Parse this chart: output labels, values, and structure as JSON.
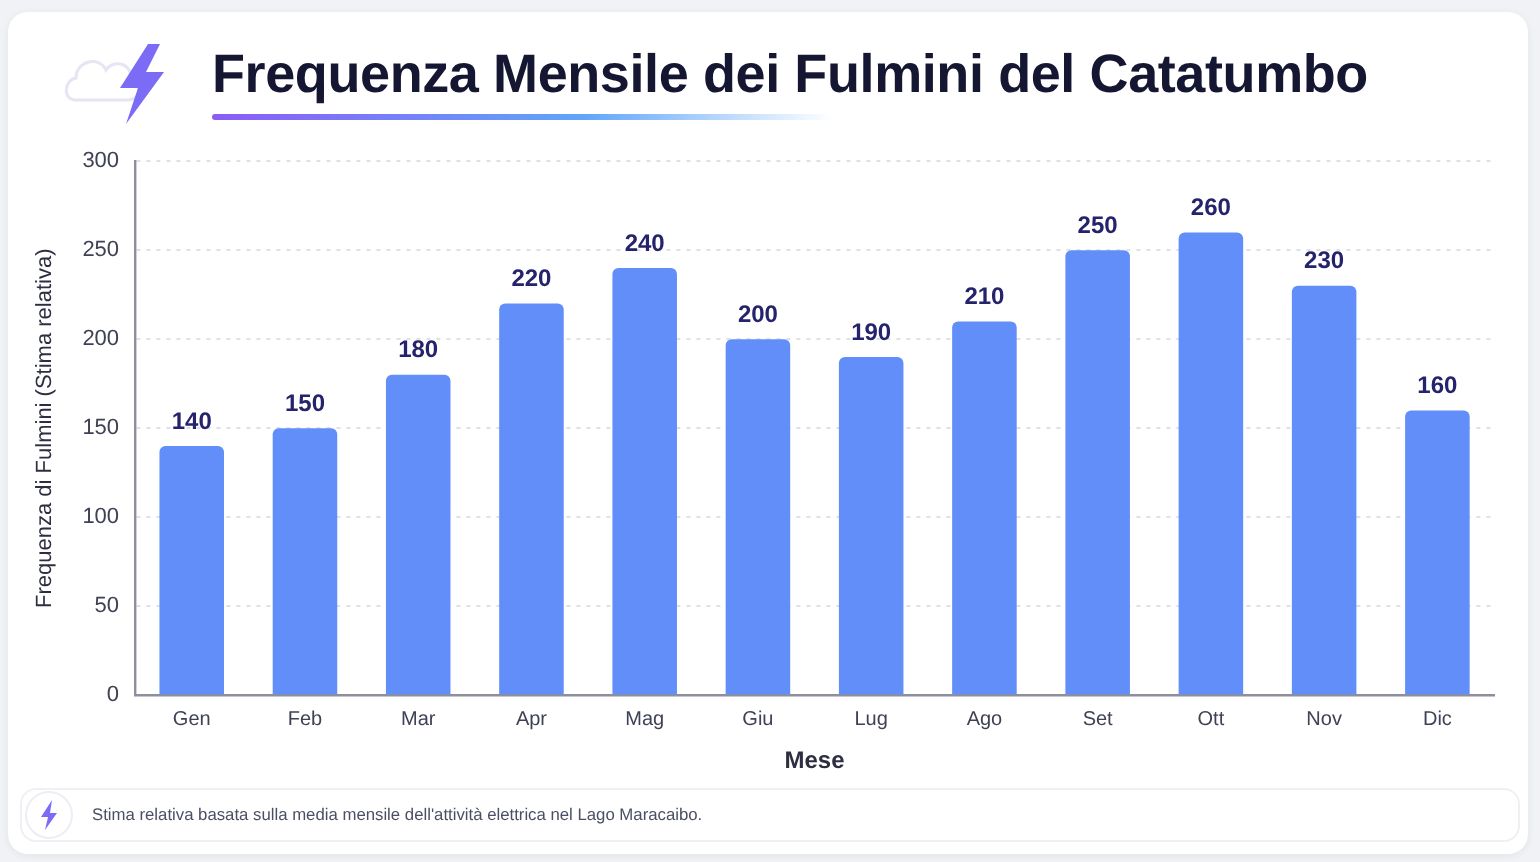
{
  "chart_data": {
    "type": "bar",
    "title": "Frequenza Mensile dei Fulmini del Catatumbo",
    "xlabel": "Mese",
    "ylabel": "Frequenza di Fulmini (Stima relativa)",
    "annotations": [
      "Stima relativa basata sulla media mensile dell'attività elettrica nel Lago Maracaibo."
    ],
    "categories": [
      "Gen",
      "Feb",
      "Mar",
      "Apr",
      "Mag",
      "Giu",
      "Lug",
      "Ago",
      "Set",
      "Ott",
      "Nov",
      "Dic"
    ],
    "values": [
      140,
      150,
      180,
      220,
      240,
      200,
      190,
      210,
      250,
      260,
      230,
      160
    ],
    "color": "#628efa",
    "ylim": [
      0,
      300
    ],
    "yticks": [
      0,
      50,
      100,
      150,
      200,
      250,
      300
    ],
    "grid": "y",
    "data_labels": true
  }
}
